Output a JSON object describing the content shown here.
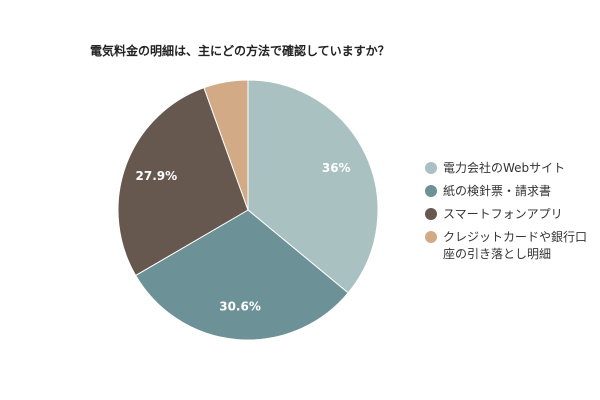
{
  "chart_data": {
    "type": "pie",
    "title": "電気料金の明細は、主にどの方法で確認していますか？",
    "categories": [
      "電力会社のWebサイト",
      "紙の検針票・請求書",
      "スマートフォンアプリ",
      "クレジットカードや銀行口座の引き落とし明細"
    ],
    "values": [
      36,
      30.6,
      27.9,
      5.5
    ],
    "value_labels": [
      "36%",
      "30.6%",
      "27.9%",
      null
    ],
    "colors": [
      "#a9c1c1",
      "#6c9197",
      "#66584f",
      "#d2aa86"
    ],
    "legend": "right"
  }
}
